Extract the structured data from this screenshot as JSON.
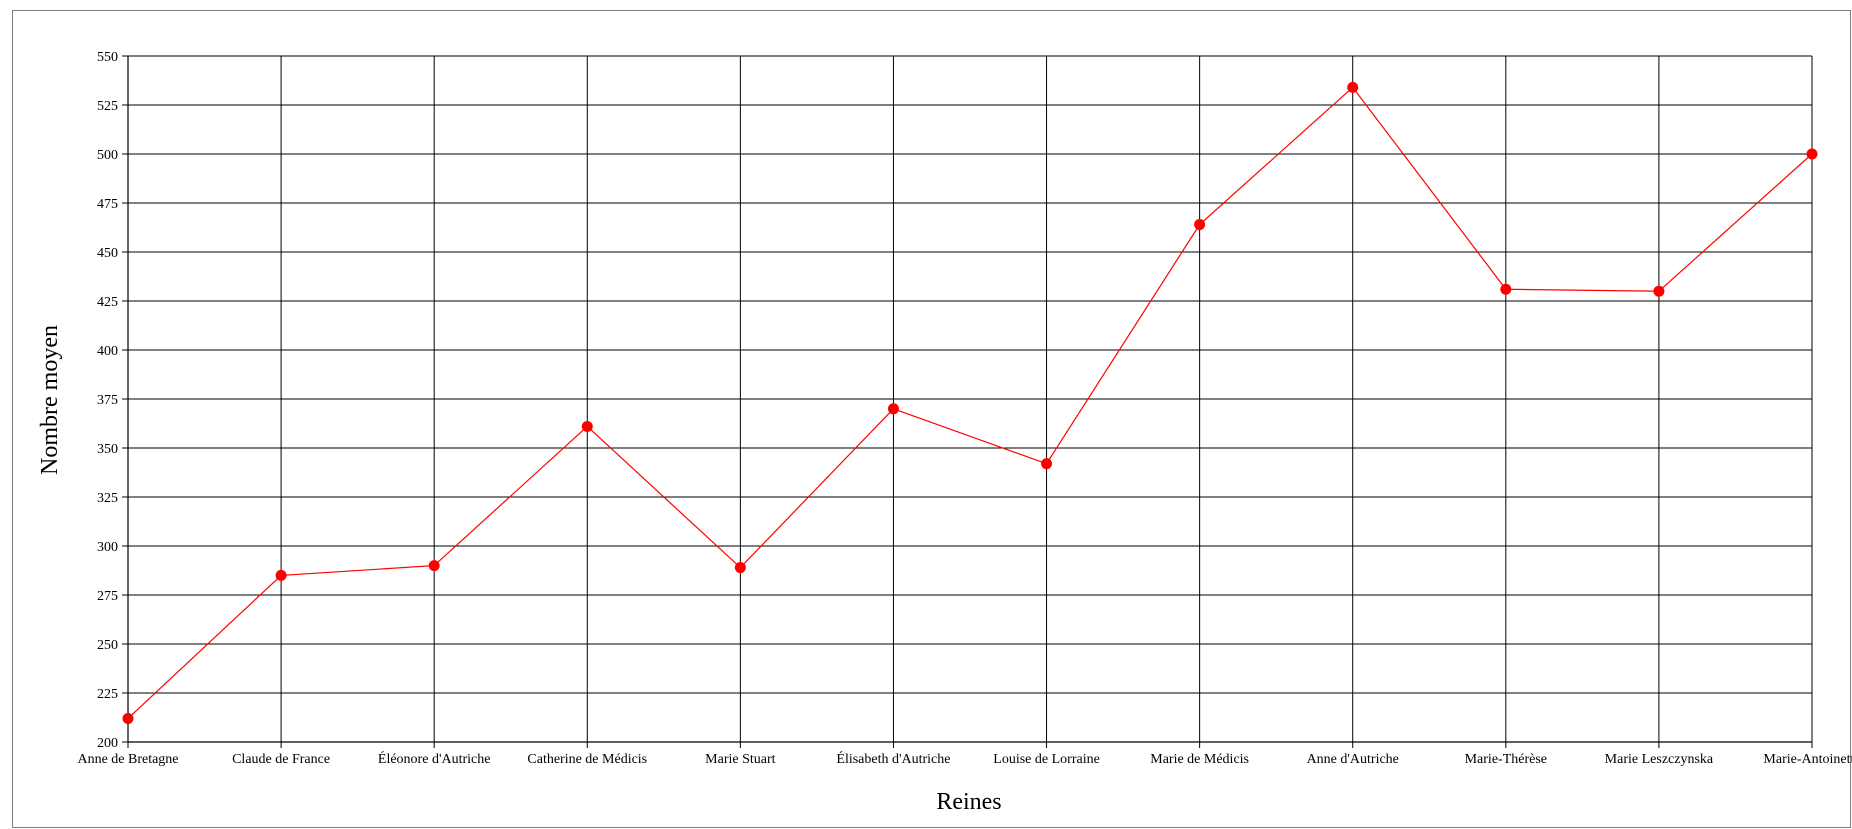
{
  "chart_data": {
    "type": "line",
    "title": "",
    "xlabel": "Reines",
    "ylabel": "Nombre moyen",
    "categories": [
      "Anne de Bretagne",
      "Claude de France",
      "Éléonore d'Autriche",
      "Catherine de Médicis",
      "Marie Stuart",
      "Élisabeth d'Autriche",
      "Louise de Lorraine",
      "Marie de Médicis",
      "Anne d'Autriche",
      "Marie-Thérèse",
      "Marie Leszczynska",
      "Marie-Antoinette"
    ],
    "series": [
      {
        "values": [
          212,
          285,
          290,
          361,
          289,
          370,
          342,
          464,
          534,
          431,
          430,
          500
        ],
        "color": "#ff0000"
      }
    ],
    "ylim": [
      200,
      550
    ],
    "yticks": [
      200,
      225,
      250,
      275,
      300,
      325,
      350,
      375,
      400,
      425,
      450,
      475,
      500,
      525,
      550
    ],
    "grid": true,
    "legend": "none"
  }
}
